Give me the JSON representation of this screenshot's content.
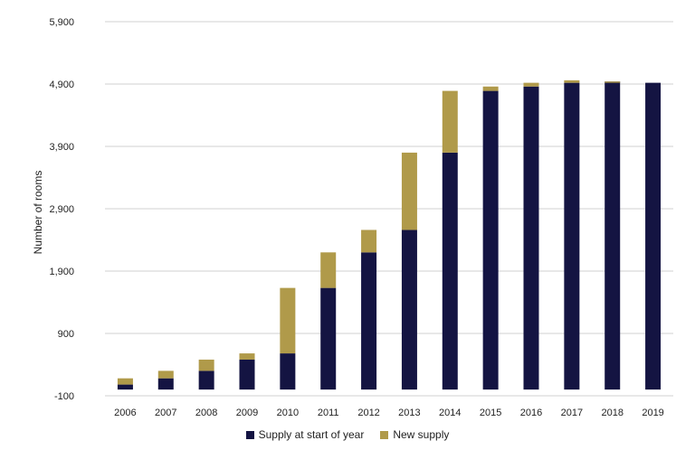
{
  "chart_data": {
    "type": "bar",
    "stacked": true,
    "categories": [
      "2006",
      "2007",
      "2008",
      "2009",
      "2010",
      "2011",
      "2012",
      "2013",
      "2014",
      "2015",
      "2016",
      "2017",
      "2018",
      "2019"
    ],
    "series": [
      {
        "name": "Supply at start of year",
        "color": "#141442",
        "values": [
          80,
          180,
          300,
          480,
          580,
          1630,
          2200,
          2560,
          3800,
          4790,
          4860,
          4920,
          4940,
          4920
        ]
      },
      {
        "name": "New supply",
        "color": "#B09A4A",
        "values": [
          100,
          120,
          180,
          100,
          1050,
          570,
          360,
          1240,
          990,
          70,
          60,
          40,
          -20,
          0
        ]
      }
    ],
    "ylabel": "Number of rooms",
    "xlabel": "",
    "ylim": [
      -100,
      5900
    ],
    "yticks": [
      "-100",
      "900",
      "1,900",
      "2,900",
      "3,900",
      "4,900",
      "5,900"
    ],
    "grid": true,
    "legend_position": "bottom"
  }
}
